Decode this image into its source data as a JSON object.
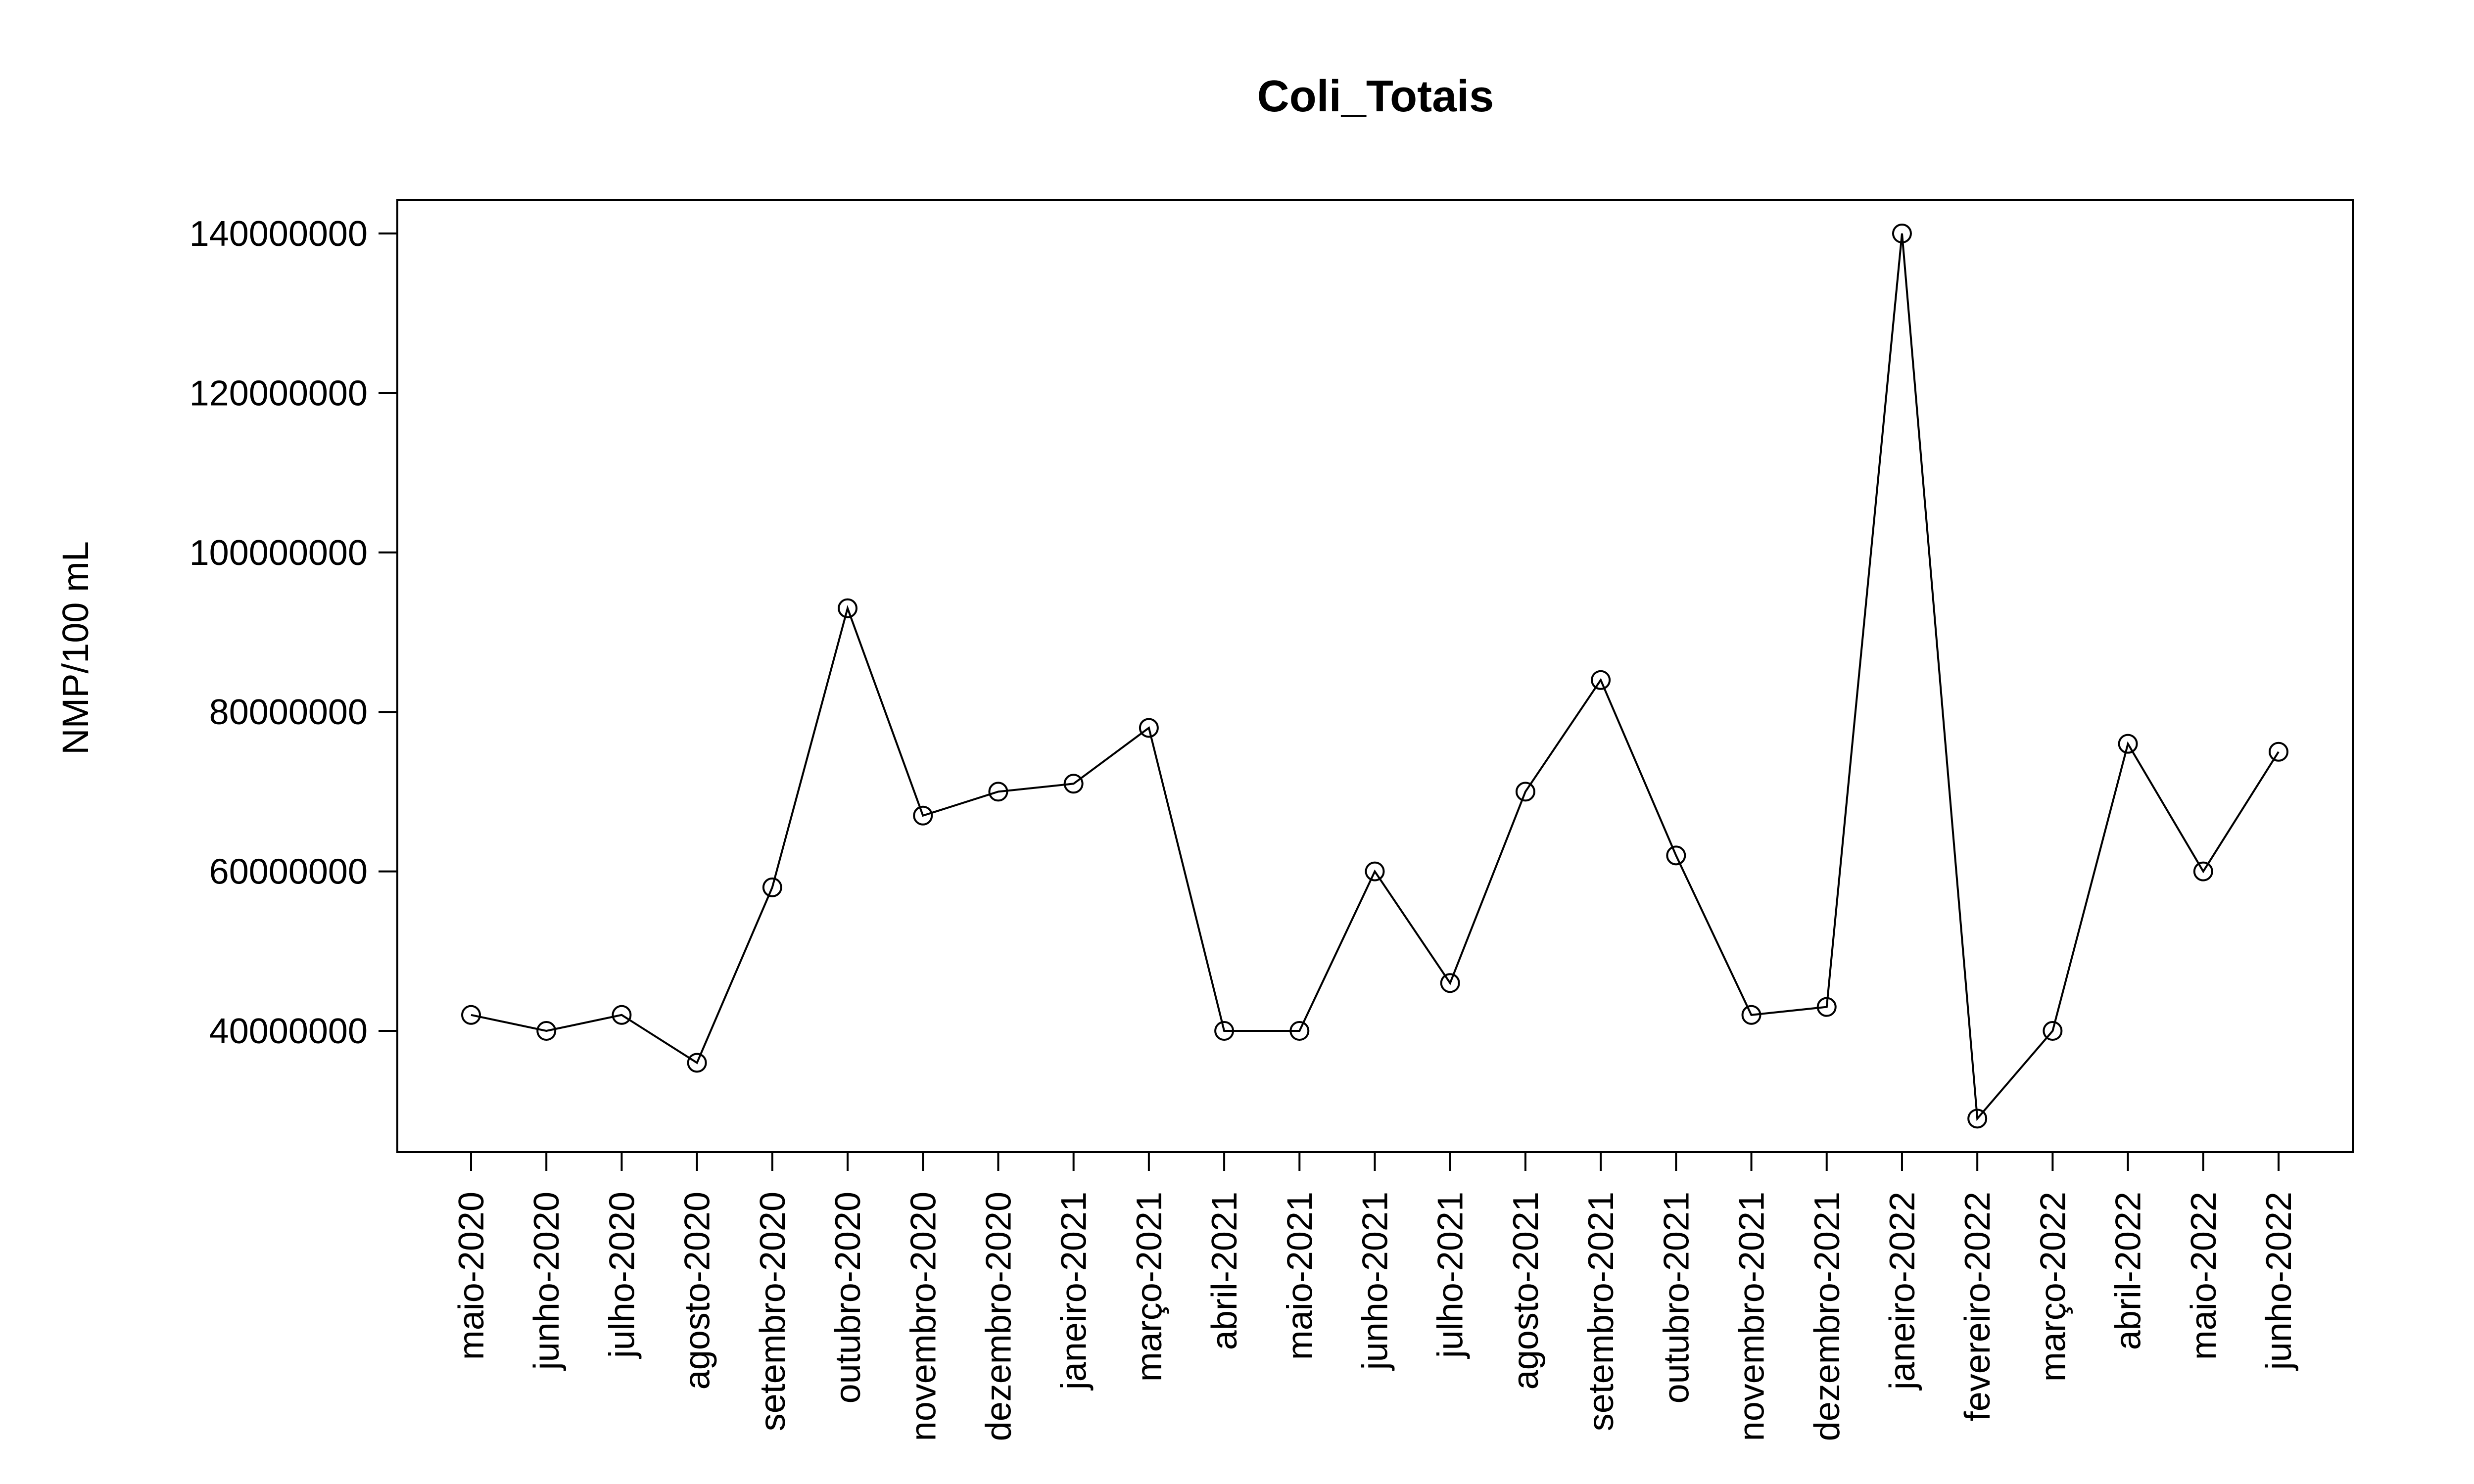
{
  "chart_data": {
    "type": "line",
    "title": "Coli_Totais",
    "xlabel": "",
    "ylabel": "NMP/100 mL",
    "markers": "open-circle",
    "line_color": "#000000",
    "grid": false,
    "legend": "none",
    "categories": [
      "maio-2020",
      "junho-2020",
      "julho-2020",
      "agosto-2020",
      "setembro-2020",
      "outubro-2020",
      "novembro-2020",
      "dezembro-2020",
      "janeiro-2021",
      "março-2021",
      "abril-2021",
      "maio-2021",
      "junho-2021",
      "julho-2021",
      "agosto-2021",
      "setembro-2021",
      "outubro-2021",
      "novembro-2021",
      "dezembro-2021",
      "janeiro-2022",
      "fevereiro-2022",
      "março-2022",
      "abril-2022",
      "maio-2022",
      "junho-2022"
    ],
    "values": [
      42000000,
      40000000,
      42000000,
      36000000,
      58000000,
      93000000,
      67000000,
      70000000,
      71000000,
      78000000,
      40000000,
      40000000,
      60000000,
      46000000,
      70000000,
      84000000,
      62000000,
      42000000,
      43000000,
      140000000,
      29000000,
      40000000,
      76000000,
      60000000,
      75000000
    ],
    "ylim": [
      24600000,
      144400000
    ],
    "yticks": [
      40000000,
      60000000,
      80000000,
      100000000,
      120000000,
      140000000
    ],
    "ytick_labels": [
      "40000000",
      "60000000",
      "80000000",
      "100000000",
      "120000000",
      "140000000"
    ]
  }
}
